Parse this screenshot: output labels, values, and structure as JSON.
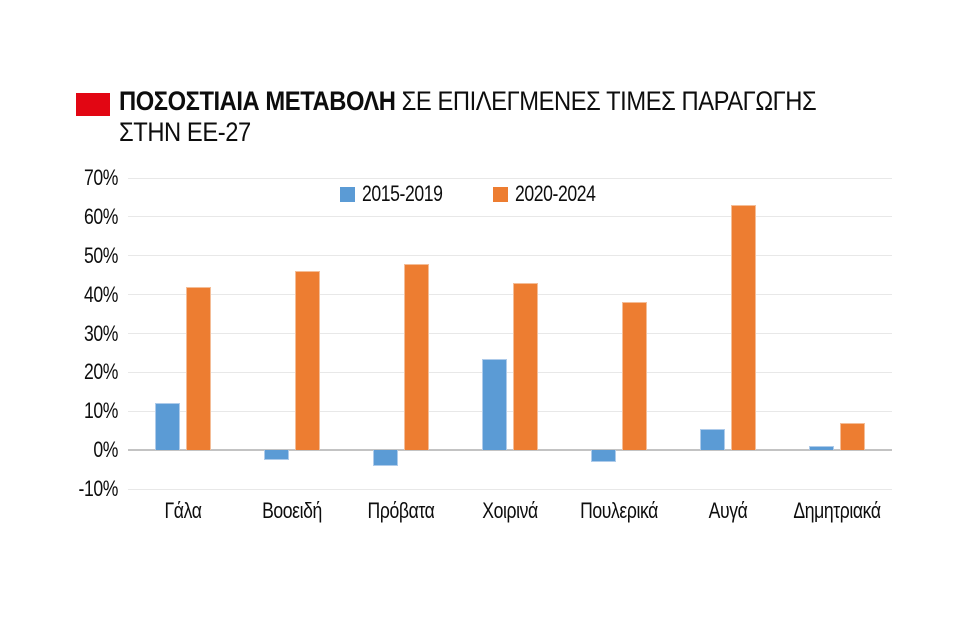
{
  "title": {
    "bold": "ΠΟΣΟΣΤΙΑΙΑ ΜΕΤΑΒΟΛΗ",
    "rest": "ΣΕ ΕΠΙΛΕΓΜΕΝΕΣ ΤΙΜΕΣ ΠΑΡΑΓΩΓΗΣ",
    "line2": "ΣΤΗΝ ΕΕ-27",
    "marker_color": "#e20613"
  },
  "chart_data": {
    "type": "bar",
    "title": "ΠΟΣΟΣΤΙΑΙΑ ΜΕΤΑΒΟΛΗ ΣΕ ΕΠΙΛΕΓΜΕΝΕΣ ΤΙΜΕΣ ΠΑΡΑΓΩΓΗΣ ΣΤΗΝ ΕΕ-27",
    "categories": [
      "Γάλα",
      "Βοοειδή",
      "Πρόβατα",
      "Χοιρινά",
      "Πουλερικά",
      "Αυγά",
      "Δημητριακά"
    ],
    "series": [
      {
        "name": "2015-2019",
        "color": "#5b9bd5",
        "border_color": "#aecbea",
        "values": [
          12,
          -2.5,
          -4,
          23.5,
          -3,
          5.5,
          1
        ]
      },
      {
        "name": "2020-2024",
        "color": "#ed7d31",
        "border_color": "#f4bd97",
        "values": [
          42,
          46,
          48,
          43,
          38,
          63,
          7
        ]
      }
    ],
    "xlabel": "",
    "ylabel": "",
    "ylim": [
      -10,
      70
    ],
    "yticks": [
      70,
      60,
      50,
      40,
      30,
      20,
      10,
      0,
      -10
    ],
    "ytick_labels": [
      "70%",
      "60%",
      "50%",
      "40%",
      "30%",
      "20%",
      "10%",
      "0%",
      "-10%"
    ],
    "grid": true,
    "zero_line_color": "#c3c3c3",
    "grid_color": "#e8e8e8",
    "legend_position": "top-center"
  }
}
